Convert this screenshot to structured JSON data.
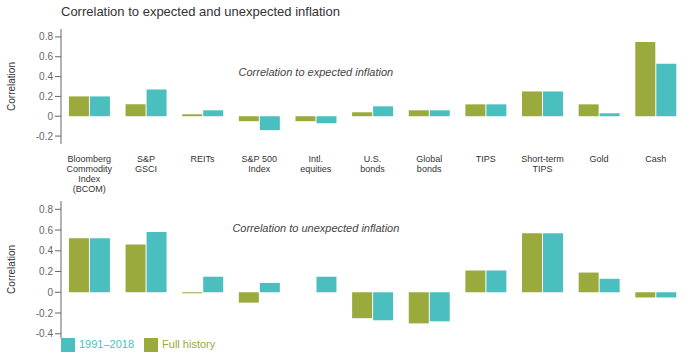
{
  "chart_data": [
    {
      "type": "bar",
      "title": "Correlation to expected and unexpected inflation",
      "categories": [
        "Bloomberg\nCommodity\nIndex\n(BCOM)",
        "S&P\nGSCI",
        "REITs",
        "S&P 500\nIndex",
        "Intl.\nequities",
        "U.S.\nbonds",
        "Global\nbonds",
        "TIPS",
        "Short-term\nTIPS",
        "Gold",
        "Cash"
      ],
      "series": [
        {
          "name": "Full history",
          "color": "#9aaa3c",
          "values": [
            0.2,
            0.12,
            0.02,
            -0.05,
            -0.05,
            0.04,
            0.06,
            0.12,
            0.25,
            0.12,
            0.75
          ]
        },
        {
          "name": "1991–2018",
          "color": "#4bbfbf",
          "values": [
            0.2,
            0.27,
            0.06,
            -0.14,
            -0.07,
            0.1,
            0.06,
            0.12,
            0.25,
            0.03,
            0.53
          ]
        }
      ],
      "ylabel": "Correlation",
      "ylim": [
        -0.28,
        0.88
      ],
      "yticks": [
        -0.2,
        0,
        0.2,
        0.4,
        0.6,
        0.8
      ],
      "annotation": "Correlation to expected inflation",
      "grid": false
    },
    {
      "type": "bar",
      "categories": [
        "Bloomberg\nCommodity\nIndex\n(BCOM)",
        "S&P\nGSCI",
        "REITs",
        "S&P 500\nIndex",
        "Intl.\nequities",
        "U.S.\nbonds",
        "Global\nbonds",
        "TIPS",
        "Short-term\nTIPS",
        "Gold",
        "Cash"
      ],
      "series": [
        {
          "name": "Full history",
          "color": "#9aaa3c",
          "values": [
            0.52,
            0.46,
            -0.01,
            -0.1,
            0.0,
            -0.25,
            -0.3,
            0.21,
            0.57,
            0.19,
            -0.05
          ]
        },
        {
          "name": "1991–2018",
          "color": "#4bbfbf",
          "values": [
            0.52,
            0.58,
            0.15,
            0.09,
            0.15,
            -0.27,
            -0.28,
            0.21,
            0.57,
            0.13,
            -0.05
          ]
        }
      ],
      "ylabel": "Correlation",
      "ylim": [
        -0.44,
        0.88
      ],
      "yticks": [
        -0.4,
        -0.2,
        0,
        0.2,
        0.4,
        0.6,
        0.8
      ],
      "annotation": "Correlation to unexpected inflation",
      "grid": false,
      "legend": "bottom",
      "tick_labels": "y"
    }
  ]
}
